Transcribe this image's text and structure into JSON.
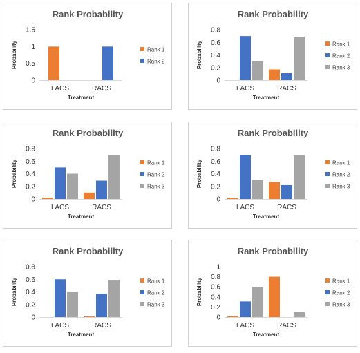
{
  "colors": {
    "Rank 1": "#ED7D31",
    "Rank 2": "#4472C4",
    "Rank 3": "#A5A5A5"
  },
  "chart_data": [
    {
      "type": "bar",
      "title": "Rank Probability",
      "xlabel": "Treatment",
      "ylabel": "Probability",
      "categories": [
        "LACS",
        "RACS"
      ],
      "ylim": [
        0,
        1.5
      ],
      "yticks": [
        "0",
        "0.5",
        "1",
        "1.5"
      ],
      "legend_position": "right",
      "series": [
        {
          "name": "Rank 1",
          "values": [
            1.0,
            0
          ]
        },
        {
          "name": "Rank 2",
          "values": [
            0,
            1.0
          ]
        }
      ]
    },
    {
      "type": "bar",
      "title": "Rank Probability",
      "xlabel": "Treatment",
      "ylabel": "Probability",
      "categories": [
        "LACS",
        "RACS"
      ],
      "ylim": [
        0,
        0.8
      ],
      "yticks": [
        "0",
        "0.2",
        "0.4",
        "0.6",
        "0.8"
      ],
      "legend_position": "right",
      "series": [
        {
          "name": "Rank 1",
          "values": [
            0,
            0.17
          ]
        },
        {
          "name": "Rank 2",
          "values": [
            0.7,
            0.11
          ]
        },
        {
          "name": "Rank 3",
          "values": [
            0.3,
            0.69
          ]
        }
      ]
    },
    {
      "type": "bar",
      "title": "Rank Probability",
      "xlabel": "Treatment",
      "ylabel": "Probability",
      "categories": [
        "LACS",
        "RACS"
      ],
      "ylim": [
        0,
        0.8
      ],
      "yticks": [
        "0",
        "0.2",
        "0.4",
        "0.6",
        "0.8"
      ],
      "legend_position": "right",
      "series": [
        {
          "name": "Rank 1",
          "values": [
            0.02,
            0.1
          ]
        },
        {
          "name": "Rank 2",
          "values": [
            0.5,
            0.29
          ]
        },
        {
          "name": "Rank 3",
          "values": [
            0.4,
            0.7
          ]
        }
      ]
    },
    {
      "type": "bar",
      "title": "Rank Probability",
      "xlabel": "Treatment",
      "ylabel": "Probability",
      "categories": [
        "LACS",
        "RACS"
      ],
      "ylim": [
        0,
        0.8
      ],
      "yticks": [
        "0",
        "0.2",
        "0.4",
        "0.6",
        "0.8"
      ],
      "legend_position": "right",
      "series": [
        {
          "name": "Rank 1",
          "values": [
            0.02,
            0.27
          ]
        },
        {
          "name": "Rank 2",
          "values": [
            0.7,
            0.22
          ]
        },
        {
          "name": "Rank 3",
          "values": [
            0.3,
            0.7
          ]
        }
      ]
    },
    {
      "type": "bar",
      "title": "Rank Probability",
      "xlabel": "Treatment",
      "ylabel": "Probability",
      "categories": [
        "LACS",
        "RACS"
      ],
      "ylim": [
        0,
        0.8
      ],
      "yticks": [
        "0",
        "0.2",
        "0.4",
        "0.6",
        "0.8"
      ],
      "legend_position": "right",
      "series": [
        {
          "name": "Rank 1",
          "values": [
            0,
            0.01
          ]
        },
        {
          "name": "Rank 2",
          "values": [
            0.6,
            0.37
          ]
        },
        {
          "name": "Rank 3",
          "values": [
            0.4,
            0.59
          ]
        }
      ]
    },
    {
      "type": "bar",
      "title": "Rank Probability",
      "xlabel": "Treatment",
      "ylabel": "Probability",
      "categories": [
        "LACS",
        "RACS"
      ],
      "ylim": [
        0,
        1
      ],
      "yticks": [
        "0",
        "0.2",
        "0.4",
        "0.6",
        "0.8",
        "1"
      ],
      "legend_position": "right",
      "series": [
        {
          "name": "Rank 1",
          "values": [
            0.02,
            0.8
          ]
        },
        {
          "name": "Rank 2",
          "values": [
            0.31,
            0
          ]
        },
        {
          "name": "Rank 3",
          "values": [
            0.6,
            0.1
          ]
        }
      ]
    }
  ]
}
